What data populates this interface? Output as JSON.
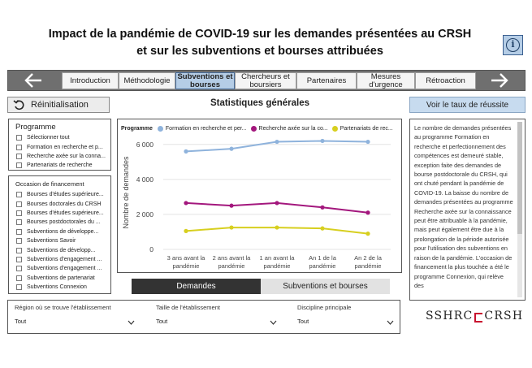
{
  "title": {
    "line1": "Impact de la pandémie de COVID-19 sur les demandes présentées au CRSH",
    "line2": "et sur les subventions et bourses attribuées"
  },
  "info_icon": "info-icon",
  "nav": {
    "back_icon": "arrow-left-icon",
    "forward_icon": "arrow-right-icon",
    "tabs": [
      {
        "line1": "Introduction",
        "line2": ""
      },
      {
        "line1": "Méthodologie",
        "line2": ""
      },
      {
        "line1": "Subventions et",
        "line2": "bourses"
      },
      {
        "line1": "Chercheurs et",
        "line2": "boursiers"
      },
      {
        "line1": "Partenaires",
        "line2": ""
      },
      {
        "line1": "Mesures",
        "line2": "d'urgence"
      },
      {
        "line1": "Rétroaction",
        "line2": ""
      }
    ]
  },
  "reset_label": "Réinitialisation",
  "rate_button": "Voir le taux de réussite",
  "section_title": "Statistiques générales",
  "program_filter": {
    "title": "Programme",
    "items": [
      "Sélectionner tout",
      "Formation en recherche et p...",
      "Recherche axée sur la conna...",
      "Partenariats de recherche"
    ]
  },
  "funding_filter": {
    "title": "Occasion de financement",
    "items": [
      "Bourses d'études supérieure...",
      "Bourses doctorales du CRSH",
      "Bourses d'études supérieure...",
      "Bourses postdoctorales du ...",
      "Subventions de développe...",
      "Subventions Savoir",
      "Subventions de développ...",
      "Subventions d'engagement ...",
      "Subventions d'engagement ...",
      "Subventions de partenariat",
      "Subventions Connexion"
    ]
  },
  "chart_data": {
    "type": "line",
    "legend_title": "Programme",
    "ylabel": "Nombre de demandes",
    "ylim": [
      0,
      6500
    ],
    "yticks": [
      0,
      2000,
      4000,
      6000
    ],
    "ytick_labels": [
      "0",
      "2 000",
      "4 000",
      "6 000"
    ],
    "categories": [
      [
        "3 ans avant la",
        "pandémie"
      ],
      [
        "2 ans avant la",
        "pandémie"
      ],
      [
        "1 an avant la",
        "pandémie"
      ],
      [
        "An 1 de la",
        "pandémie"
      ],
      [
        "An 2 de la",
        "pandémie"
      ]
    ],
    "series": [
      {
        "name": "Formation en recherche et per...",
        "color": "#8fb3dc",
        "values": [
          5600,
          5750,
          6150,
          6200,
          6150
        ]
      },
      {
        "name": "Recherche axée sur la co...",
        "color": "#a3177d",
        "values": [
          2650,
          2500,
          2650,
          2400,
          2100
        ]
      },
      {
        "name": "Partenariats de rec...",
        "color": "#d7cf1f",
        "values": [
          1050,
          1250,
          1250,
          1200,
          900
        ]
      }
    ]
  },
  "toggle": {
    "on": "Demandes",
    "off": "Subventions et bourses"
  },
  "description": "Le nombre de demandes présentées au programme Formation en recherche et perfectionnement des compétences est demeuré stable, exception faite des demandes de bourse postdoctorale du CRSH, qui ont chuté pendant la pandémie de COVID-19. La baisse du nombre de demandes présentées au programme Recherche axée sur la connaissance peut être attribuable à la pandémie, mais peut également être due à la prolongation de la période autorisée pour l'utilisation des subventions en raison de la pandémie. L'occasion de financement la plus touchée a été le programme Connexion, qui relève des",
  "filters": [
    {
      "label": "Région où se trouve l'établissement",
      "value": "Tout"
    },
    {
      "label": "Taille de l'établissement",
      "value": "Tout"
    },
    {
      "label": "Discipline principale",
      "value": "Tout"
    }
  ],
  "logo": {
    "left": "SSHRC",
    "right": "CRSH"
  }
}
